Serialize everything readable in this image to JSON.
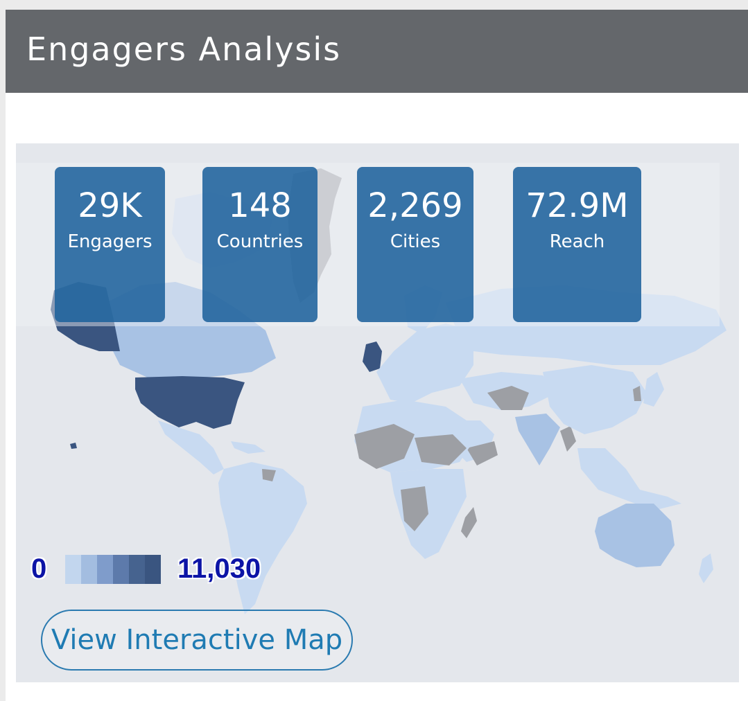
{
  "header": {
    "title": "Engagers Analysis"
  },
  "stats": [
    {
      "value": "29K",
      "label": "Engagers"
    },
    {
      "value": "148",
      "label": "Countries"
    },
    {
      "value": "2,269",
      "label": "Cities"
    },
    {
      "value": "72.9M",
      "label": "Reach"
    }
  ],
  "legend": {
    "min": "0",
    "max": "11,030",
    "colors": [
      "#c2d6ee",
      "#a3bde0",
      "#7f9ccb",
      "#5d7aab",
      "#46638f",
      "#3a5580"
    ]
  },
  "map": {
    "colors": {
      "ocean": "#e4e7ec",
      "low": "#c8daf1",
      "medium": "#a8c2e4",
      "high": "#3a5580",
      "no_data": "#9d9fa4",
      "border": "#ffffff"
    }
  },
  "actions": {
    "view_map_label": "View Interactive Map"
  }
}
